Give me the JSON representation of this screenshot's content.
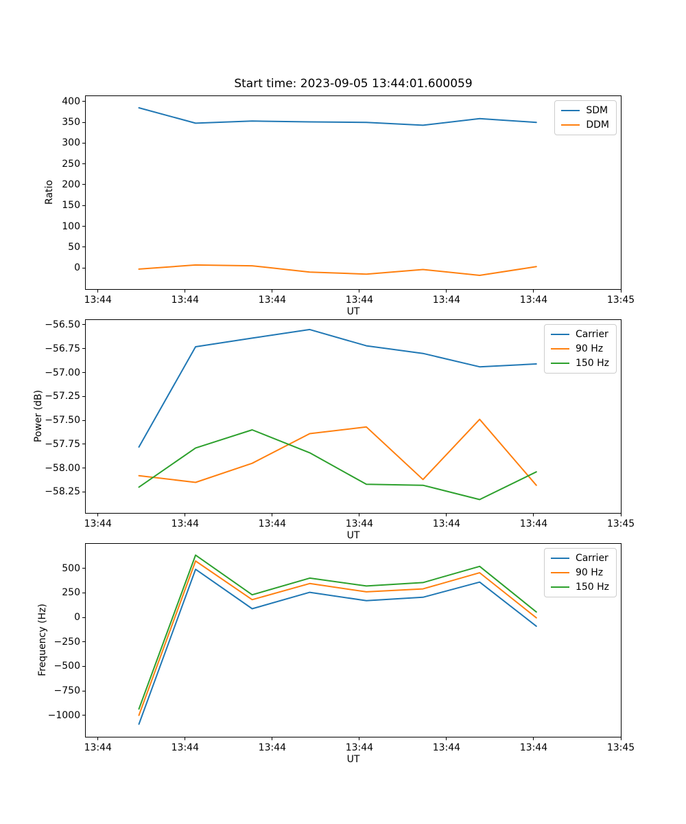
{
  "figure": {
    "background": "#ffffff",
    "axis_color": "#000000",
    "legend_border_color": "#cccccc"
  },
  "chart_data": [
    {
      "type": "line",
      "title": "Start time: 2023-09-05 13:44:01.600059",
      "xlabel": "UT",
      "ylabel": "Ratio",
      "grid": false,
      "legend_position": "upper right",
      "xlim": [
        -1.4,
        60
      ],
      "ylim": [
        -51,
        413
      ],
      "x": [
        4.7,
        11.2,
        17.7,
        24.3,
        30.8,
        37.3,
        43.8,
        50.3
      ],
      "xticks": [
        {
          "value": 0,
          "label": "13:44"
        },
        {
          "value": 10,
          "label": "13:44"
        },
        {
          "value": 20,
          "label": "13:44"
        },
        {
          "value": 30,
          "label": "13:44"
        },
        {
          "value": 40,
          "label": "13:44"
        },
        {
          "value": 50,
          "label": "13:44"
        },
        {
          "value": 60,
          "label": "13:45"
        }
      ],
      "yticks": [
        {
          "value": 0,
          "label": "0"
        },
        {
          "value": 50,
          "label": "50"
        },
        {
          "value": 100,
          "label": "100"
        },
        {
          "value": 150,
          "label": "150"
        },
        {
          "value": 200,
          "label": "200"
        },
        {
          "value": 250,
          "label": "250"
        },
        {
          "value": 300,
          "label": "300"
        },
        {
          "value": 350,
          "label": "350"
        },
        {
          "value": 400,
          "label": "400"
        }
      ],
      "series": [
        {
          "name": "SDM",
          "color": "#1f77b4",
          "values": [
            385,
            348,
            353,
            351,
            350,
            343,
            359,
            350
          ]
        },
        {
          "name": "DDM",
          "color": "#ff7f0e",
          "values": [
            -3,
            7,
            5,
            -10,
            -15,
            -4,
            -18,
            3
          ]
        }
      ]
    },
    {
      "type": "line",
      "title": "",
      "xlabel": "UT",
      "ylabel": "Power (dB)",
      "grid": false,
      "legend_position": "upper right",
      "xlim": [
        -1.4,
        60
      ],
      "ylim": [
        -58.47,
        -56.45
      ],
      "x": [
        4.7,
        11.2,
        17.7,
        24.3,
        30.8,
        37.3,
        43.8,
        50.3
      ],
      "xticks": [
        {
          "value": 0,
          "label": "13:44"
        },
        {
          "value": 10,
          "label": "13:44"
        },
        {
          "value": 20,
          "label": "13:44"
        },
        {
          "value": 30,
          "label": "13:44"
        },
        {
          "value": 40,
          "label": "13:44"
        },
        {
          "value": 50,
          "label": "13:44"
        },
        {
          "value": 60,
          "label": "13:45"
        }
      ],
      "yticks": [
        {
          "value": -58.25,
          "label": "−58.25"
        },
        {
          "value": -58.0,
          "label": "−58.00"
        },
        {
          "value": -57.75,
          "label": "−57.75"
        },
        {
          "value": -57.5,
          "label": "−57.50"
        },
        {
          "value": -57.25,
          "label": "−57.25"
        },
        {
          "value": -57.0,
          "label": "−57.00"
        },
        {
          "value": -56.75,
          "label": "−56.75"
        },
        {
          "value": -56.5,
          "label": "−56.50"
        }
      ],
      "series": [
        {
          "name": "Carrier",
          "color": "#1f77b4",
          "values": [
            -57.78,
            -56.73,
            -56.64,
            -56.55,
            -56.72,
            -56.8,
            -56.94,
            -56.91
          ]
        },
        {
          "name": "90 Hz",
          "color": "#ff7f0e",
          "values": [
            -58.08,
            -58.15,
            -57.95,
            -57.64,
            -57.57,
            -58.12,
            -57.49,
            -58.18
          ]
        },
        {
          "name": "150 Hz",
          "color": "#2ca02c",
          "values": [
            -58.2,
            -57.79,
            -57.6,
            -57.84,
            -58.17,
            -58.18,
            -58.33,
            -58.04
          ]
        }
      ]
    },
    {
      "type": "line",
      "title": "",
      "xlabel": "UT",
      "ylabel": "Frequency (Hz)",
      "grid": false,
      "legend_position": "upper right",
      "xlim": [
        -1.4,
        60
      ],
      "ylim": [
        -1219,
        750
      ],
      "x": [
        4.7,
        11.2,
        17.7,
        24.3,
        30.8,
        37.3,
        43.8,
        50.3
      ],
      "xticks": [
        {
          "value": 0,
          "label": "13:44"
        },
        {
          "value": 10,
          "label": "13:44"
        },
        {
          "value": 20,
          "label": "13:44"
        },
        {
          "value": 30,
          "label": "13:44"
        },
        {
          "value": 40,
          "label": "13:44"
        },
        {
          "value": 50,
          "label": "13:44"
        },
        {
          "value": 60,
          "label": "13:45"
        }
      ],
      "yticks": [
        {
          "value": -1000,
          "label": "−1000"
        },
        {
          "value": -750,
          "label": "−750"
        },
        {
          "value": -500,
          "label": "−500"
        },
        {
          "value": -250,
          "label": "−250"
        },
        {
          "value": 0,
          "label": "0"
        },
        {
          "value": 250,
          "label": "250"
        },
        {
          "value": 500,
          "label": "500"
        }
      ],
      "series": [
        {
          "name": "Carrier",
          "color": "#1f77b4",
          "values": [
            -1090,
            490,
            88,
            255,
            170,
            205,
            360,
            -90
          ]
        },
        {
          "name": "90 Hz",
          "color": "#ff7f0e",
          "values": [
            -1000,
            575,
            180,
            345,
            260,
            290,
            455,
            -5
          ]
        },
        {
          "name": "150 Hz",
          "color": "#2ca02c",
          "values": [
            -935,
            635,
            230,
            400,
            320,
            355,
            520,
            55
          ]
        }
      ]
    }
  ]
}
